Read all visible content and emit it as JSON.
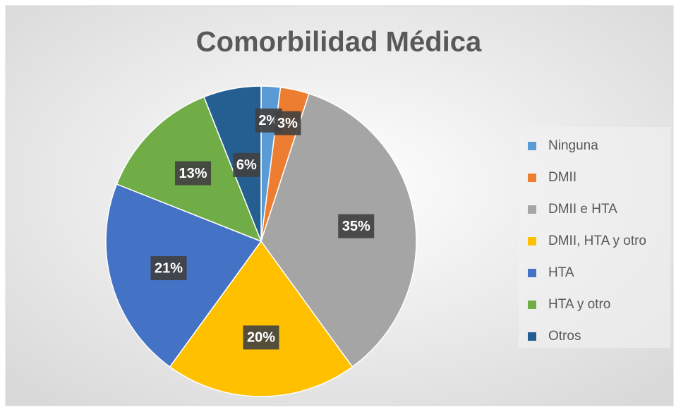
{
  "chart_data": {
    "type": "pie",
    "title": "Comorbilidad Médica",
    "categories": [
      "Ninguna",
      "DMII",
      "DMII e HTA",
      "DMII, HTA y otro",
      "HTA",
      "HTA y otro",
      "Otros"
    ],
    "values": [
      2,
      3,
      35,
      20,
      21,
      13,
      6
    ],
    "value_labels": [
      "2%",
      "3%",
      "35%",
      "20%",
      "21%",
      "13%",
      "6%"
    ],
    "colors": [
      "#5b9bd5",
      "#ed7d31",
      "#a5a5a5",
      "#ffc000",
      "#4472c4",
      "#70ad47",
      "#255e91"
    ],
    "legend": "right"
  }
}
